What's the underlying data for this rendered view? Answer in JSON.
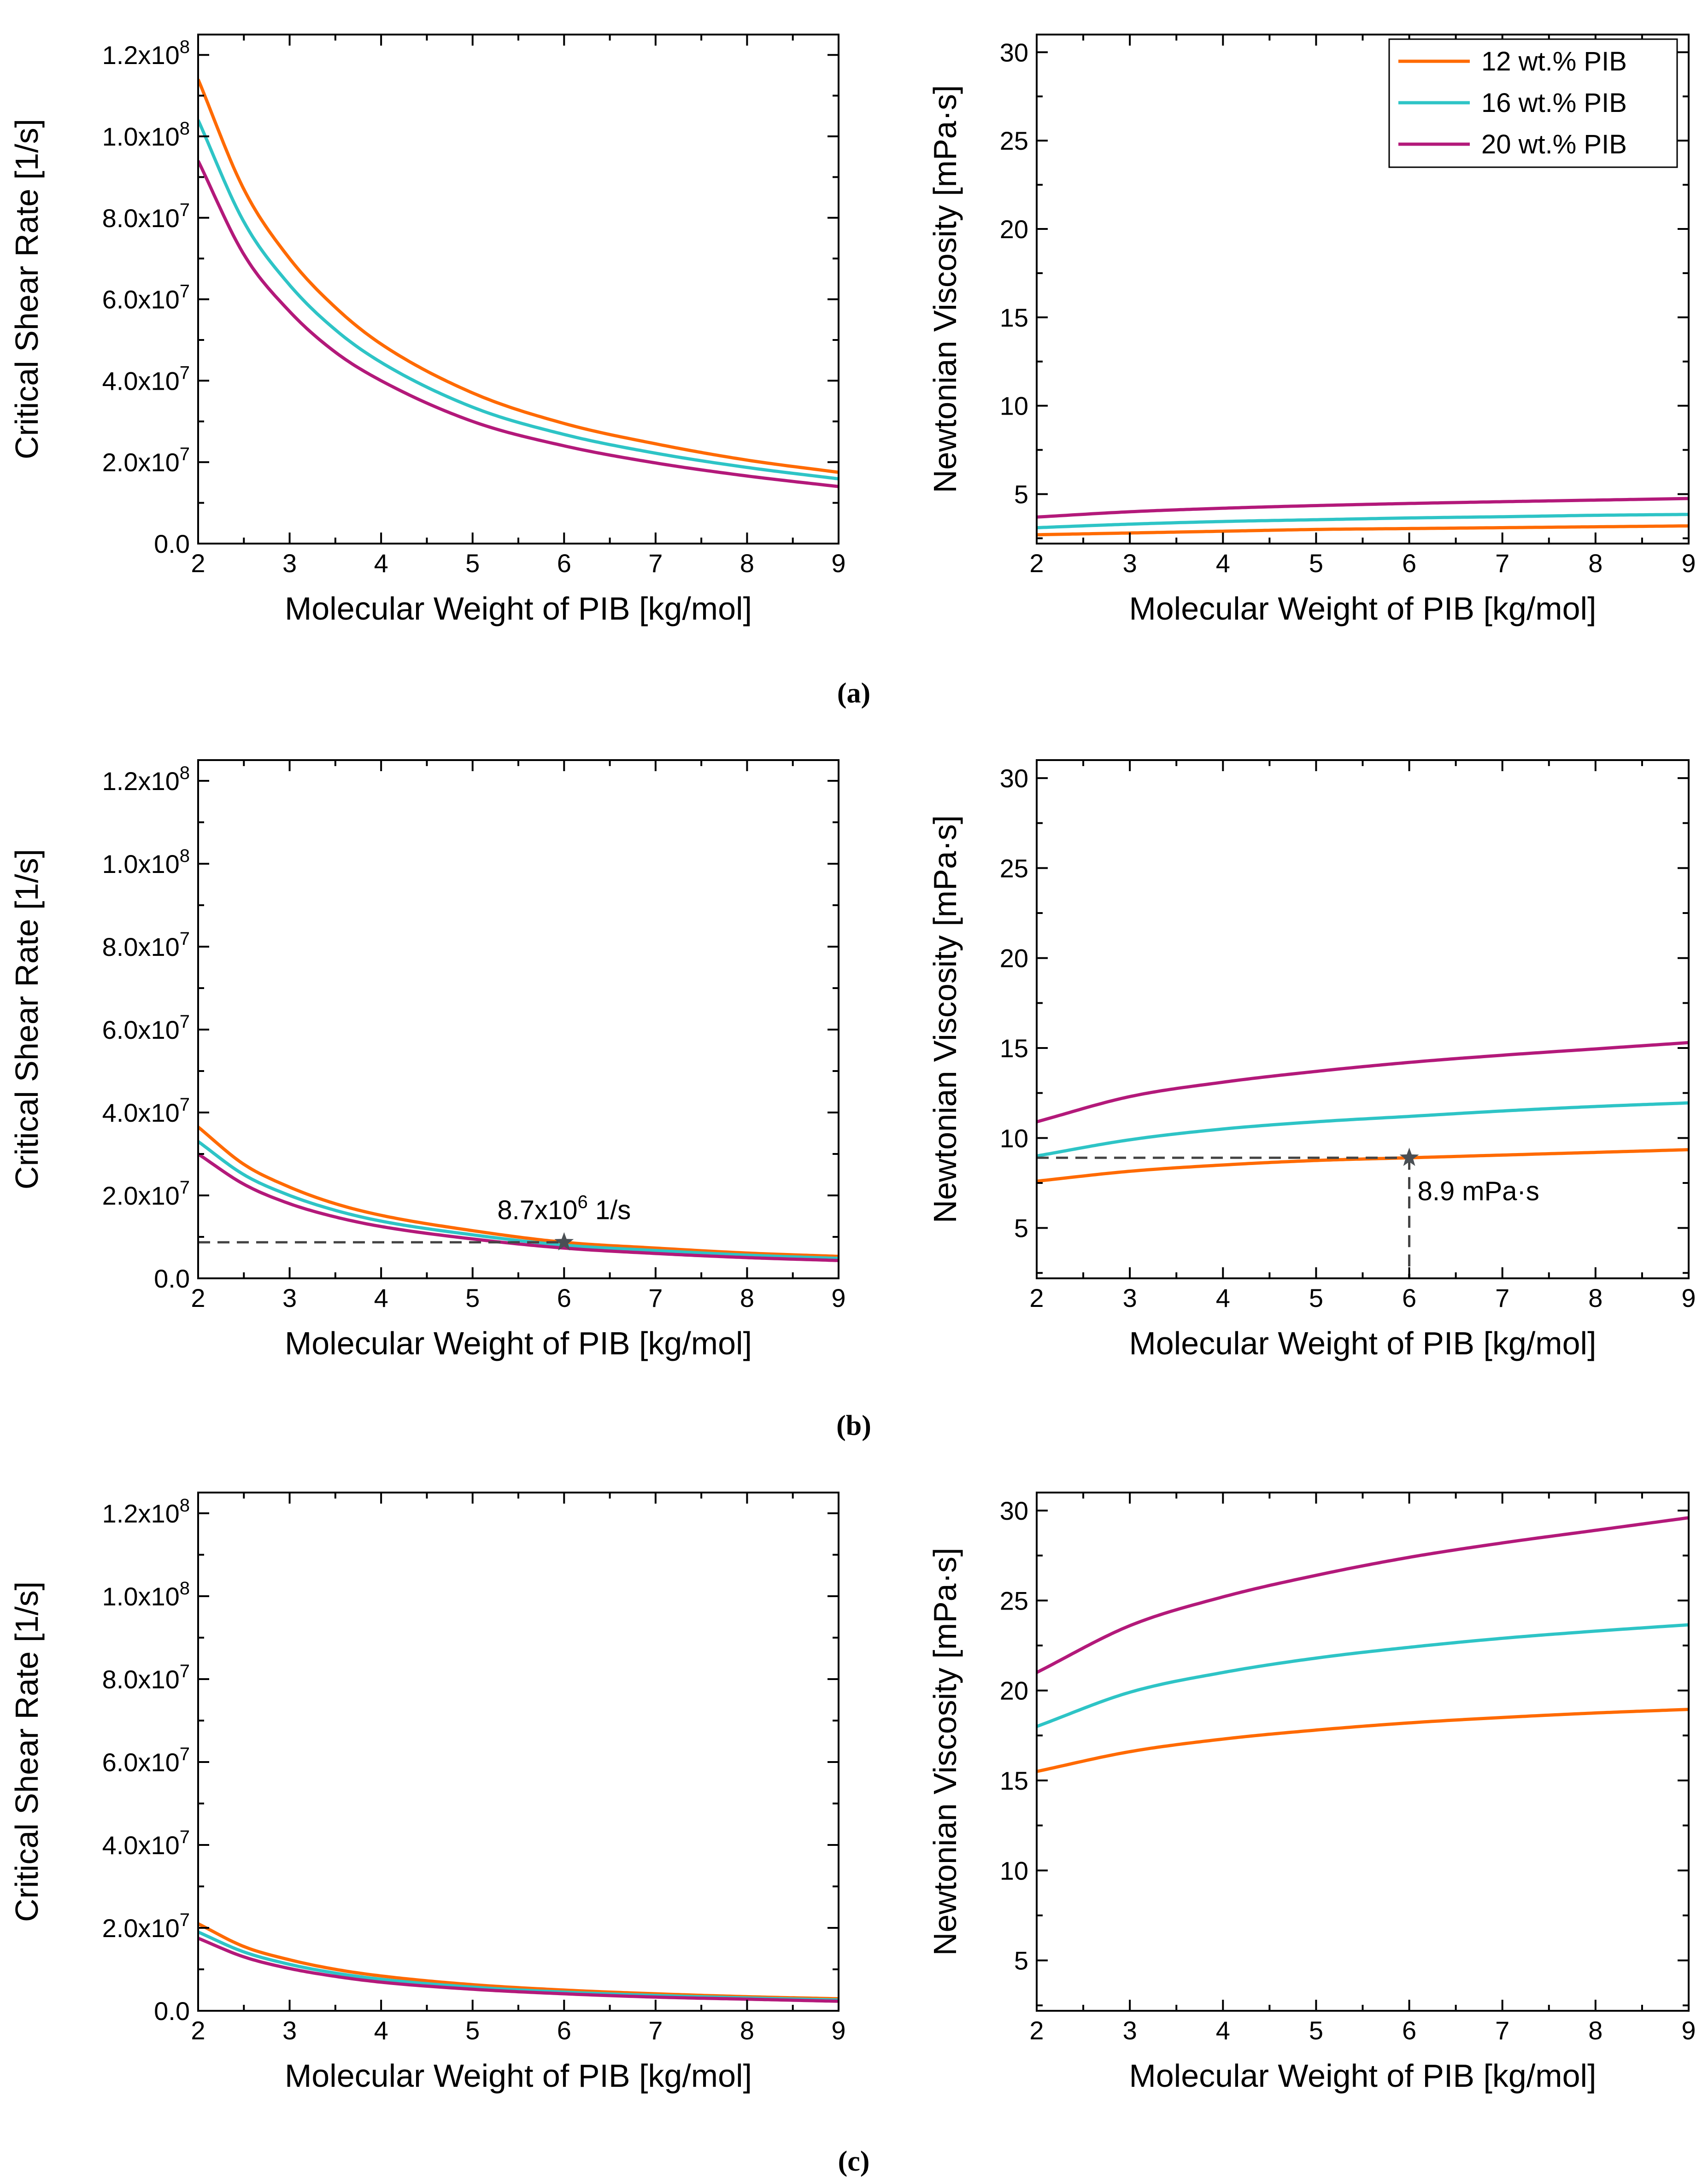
{
  "colors": {
    "series_12": "#ff6a00",
    "series_16": "#2ec4c6",
    "series_20": "#b3197a",
    "annotation": "#444444"
  },
  "captions": [
    "(a)",
    "(b)",
    "(c)"
  ],
  "legend": {
    "entries": [
      "12 wt.% PIB",
      "16 wt.% PIB",
      "20 wt.% PIB"
    ]
  },
  "chart_data": [
    {
      "type": "line",
      "row": "a",
      "xlabel": "Molecular Weight of PIB [kg/mol]",
      "ylabel": "Critical Shear Rate [1/s]",
      "xlim": [
        2,
        9
      ],
      "ylim": [
        0,
        125000000
      ],
      "xticks": [
        "2",
        "3",
        "4",
        "5",
        "6",
        "7",
        "8",
        "9"
      ],
      "yticks": [
        {
          "value": 0,
          "label": "0.0",
          "exp": ""
        },
        {
          "value": 20000000,
          "label": "2.0x10",
          "exp": "7"
        },
        {
          "value": 40000000,
          "label": "4.0x10",
          "exp": "7"
        },
        {
          "value": 60000000,
          "label": "6.0x10",
          "exp": "7"
        },
        {
          "value": 80000000,
          "label": "8.0x10",
          "exp": "7"
        },
        {
          "value": 100000000,
          "label": "1.0x10",
          "exp": "8"
        },
        {
          "value": 120000000,
          "label": "1.2x10",
          "exp": "8"
        }
      ],
      "x": [
        2,
        2.5,
        3,
        3.5,
        4,
        5,
        6,
        7,
        8,
        9
      ],
      "series": [
        {
          "name": "12 wt.% PIB",
          "values": [
            114000000,
            87000000,
            70000000,
            58000000,
            49000000,
            37000000,
            29500000,
            24500000,
            20500000,
            17500000
          ]
        },
        {
          "name": "16 wt.% PIB",
          "values": [
            104000000,
            79000000,
            63500000,
            52500000,
            44500000,
            33500000,
            26800000,
            22200000,
            18700000,
            15900000
          ]
        },
        {
          "name": "20 wt.% PIB",
          "values": [
            94000000,
            71000000,
            57000000,
            47000000,
            40000000,
            30000000,
            24000000,
            19800000,
            16600000,
            14000000
          ]
        }
      ]
    },
    {
      "type": "line",
      "row": "a",
      "xlabel": "Molecular Weight of PIB [kg/mol]",
      "ylabel": "Newtonian Viscosity [mPa·s]",
      "xlim": [
        2,
        9
      ],
      "ylim": [
        2.2,
        31
      ],
      "xticks": [
        "2",
        "3",
        "4",
        "5",
        "6",
        "7",
        "8",
        "9"
      ],
      "yticks": [
        {
          "value": 5,
          "label": "5",
          "exp": ""
        },
        {
          "value": 10,
          "label": "10",
          "exp": ""
        },
        {
          "value": 15,
          "label": "15",
          "exp": ""
        },
        {
          "value": 20,
          "label": "20",
          "exp": ""
        },
        {
          "value": 25,
          "label": "25",
          "exp": ""
        },
        {
          "value": 30,
          "label": "30",
          "exp": ""
        }
      ],
      "x": [
        2,
        3,
        4,
        5,
        6,
        7,
        8,
        9
      ],
      "series": [
        {
          "name": "12 wt.% PIB",
          "values": [
            2.7,
            2.8,
            2.9,
            3.0,
            3.05,
            3.1,
            3.15,
            3.2
          ]
        },
        {
          "name": "16 wt.% PIB",
          "values": [
            3.1,
            3.3,
            3.45,
            3.55,
            3.65,
            3.72,
            3.8,
            3.85
          ]
        },
        {
          "name": "20 wt.% PIB",
          "values": [
            3.7,
            4.0,
            4.2,
            4.35,
            4.47,
            4.57,
            4.66,
            4.75
          ]
        }
      ],
      "legend": "top-right"
    },
    {
      "type": "line",
      "row": "b",
      "xlabel": "Molecular Weight of PIB [kg/mol]",
      "ylabel": "Critical Shear Rate [1/s]",
      "xlim": [
        2,
        9
      ],
      "ylim": [
        0,
        125000000
      ],
      "xticks": [
        "2",
        "3",
        "4",
        "5",
        "6",
        "7",
        "8",
        "9"
      ],
      "yticks": [
        {
          "value": 0,
          "label": "0.0",
          "exp": ""
        },
        {
          "value": 20000000,
          "label": "2.0x10",
          "exp": "7"
        },
        {
          "value": 40000000,
          "label": "4.0x10",
          "exp": "7"
        },
        {
          "value": 60000000,
          "label": "6.0x10",
          "exp": "7"
        },
        {
          "value": 80000000,
          "label": "8.0x10",
          "exp": "7"
        },
        {
          "value": 100000000,
          "label": "1.0x10",
          "exp": "8"
        },
        {
          "value": 120000000,
          "label": "1.2x10",
          "exp": "8"
        }
      ],
      "x": [
        2,
        2.5,
        3,
        3.5,
        4,
        5,
        6,
        7,
        8,
        9
      ],
      "series": [
        {
          "name": "12 wt.% PIB",
          "values": [
            36500000,
            27500000,
            22000000,
            18000000,
            15200000,
            11500000,
            8700000,
            7300000,
            6100000,
            5300000
          ]
        },
        {
          "name": "16 wt.% PIB",
          "values": [
            33000000,
            25000000,
            20000000,
            16400000,
            13800000,
            10500000,
            8000000,
            6700000,
            5600000,
            4800000
          ]
        },
        {
          "name": "20 wt.% PIB",
          "values": [
            30000000,
            22700000,
            18000000,
            14800000,
            12500000,
            9500000,
            7300000,
            6000000,
            5000000,
            4300000
          ]
        }
      ],
      "annotation": {
        "x": 6,
        "y": 8700000,
        "text": "8.7x10",
        "exp": "6",
        "unit": " 1/s"
      }
    },
    {
      "type": "line",
      "row": "b",
      "xlabel": "Molecular Weight of PIB [kg/mol]",
      "ylabel": "Newtonian Viscosity [mPa·s]",
      "xlim": [
        2,
        9
      ],
      "ylim": [
        2.2,
        31
      ],
      "xticks": [
        "2",
        "3",
        "4",
        "5",
        "6",
        "7",
        "8",
        "9"
      ],
      "yticks": [
        {
          "value": 5,
          "label": "5",
          "exp": ""
        },
        {
          "value": 10,
          "label": "10",
          "exp": ""
        },
        {
          "value": 15,
          "label": "15",
          "exp": ""
        },
        {
          "value": 20,
          "label": "20",
          "exp": ""
        },
        {
          "value": 25,
          "label": "25",
          "exp": ""
        },
        {
          "value": 30,
          "label": "30",
          "exp": ""
        }
      ],
      "x": [
        2,
        3,
        4,
        5,
        6,
        7,
        8,
        9
      ],
      "series": [
        {
          "name": "12 wt.% PIB",
          "values": [
            7.6,
            8.15,
            8.5,
            8.75,
            8.9,
            9.05,
            9.2,
            9.35
          ]
        },
        {
          "name": "16 wt.% PIB",
          "values": [
            9.0,
            9.9,
            10.5,
            10.9,
            11.2,
            11.5,
            11.75,
            11.95
          ]
        },
        {
          "name": "20 wt.% PIB",
          "values": [
            10.9,
            12.3,
            13.1,
            13.7,
            14.2,
            14.6,
            14.95,
            15.3
          ]
        }
      ],
      "annotation": {
        "x": 6,
        "y": 8.9,
        "text": "8.9 mPa·s",
        "exp": "",
        "unit": ""
      }
    },
    {
      "type": "line",
      "row": "c",
      "xlabel": "Molecular Weight of PIB [kg/mol]",
      "ylabel": "Critical Shear Rate [1/s]",
      "xlim": [
        2,
        9
      ],
      "ylim": [
        0,
        125000000
      ],
      "xticks": [
        "2",
        "3",
        "4",
        "5",
        "6",
        "7",
        "8",
        "9"
      ],
      "yticks": [
        {
          "value": 0,
          "label": "0.0",
          "exp": ""
        },
        {
          "value": 20000000,
          "label": "2.0x10",
          "exp": "7"
        },
        {
          "value": 40000000,
          "label": "4.0x10",
          "exp": "7"
        },
        {
          "value": 60000000,
          "label": "6.0x10",
          "exp": "7"
        },
        {
          "value": 80000000,
          "label": "8.0x10",
          "exp": "7"
        },
        {
          "value": 100000000,
          "label": "1.0x10",
          "exp": "8"
        },
        {
          "value": 120000000,
          "label": "1.2x10",
          "exp": "8"
        }
      ],
      "x": [
        2,
        2.5,
        3,
        3.5,
        4,
        5,
        6,
        7,
        8,
        9
      ],
      "series": [
        {
          "name": "12 wt.% PIB",
          "values": [
            21000000,
            15500000,
            12300000,
            10000000,
            8400000,
            6300000,
            5000000,
            4100000,
            3400000,
            2900000
          ]
        },
        {
          "name": "16 wt.% PIB",
          "values": [
            19000000,
            14200000,
            11200000,
            9100000,
            7600000,
            5700000,
            4500000,
            3700000,
            3100000,
            2600000
          ]
        },
        {
          "name": "20 wt.% PIB",
          "values": [
            17500000,
            13000000,
            10200000,
            8300000,
            6900000,
            5200000,
            4100000,
            3300000,
            2800000,
            2300000
          ]
        }
      ]
    },
    {
      "type": "line",
      "row": "c",
      "xlabel": "Molecular Weight of PIB [kg/mol]",
      "ylabel": "Newtonian Viscosity [mPa·s]",
      "xlim": [
        2,
        9
      ],
      "ylim": [
        2.2,
        31
      ],
      "xticks": [
        "2",
        "3",
        "4",
        "5",
        "6",
        "7",
        "8",
        "9"
      ],
      "yticks": [
        {
          "value": 5,
          "label": "5",
          "exp": ""
        },
        {
          "value": 10,
          "label": "10",
          "exp": ""
        },
        {
          "value": 15,
          "label": "15",
          "exp": ""
        },
        {
          "value": 20,
          "label": "20",
          "exp": ""
        },
        {
          "value": 25,
          "label": "25",
          "exp": ""
        },
        {
          "value": 30,
          "label": "30",
          "exp": ""
        }
      ],
      "x": [
        2,
        3,
        4,
        5,
        6,
        7,
        8,
        9
      ],
      "series": [
        {
          "name": "12 wt.% PIB",
          "values": [
            15.5,
            16.6,
            17.3,
            17.8,
            18.2,
            18.5,
            18.75,
            18.95
          ]
        },
        {
          "name": "16 wt.% PIB",
          "values": [
            18.0,
            19.9,
            21.0,
            21.8,
            22.4,
            22.9,
            23.3,
            23.65
          ]
        },
        {
          "name": "20 wt.% PIB",
          "values": [
            21.0,
            23.6,
            25.2,
            26.4,
            27.4,
            28.2,
            28.9,
            29.6
          ]
        }
      ]
    }
  ]
}
